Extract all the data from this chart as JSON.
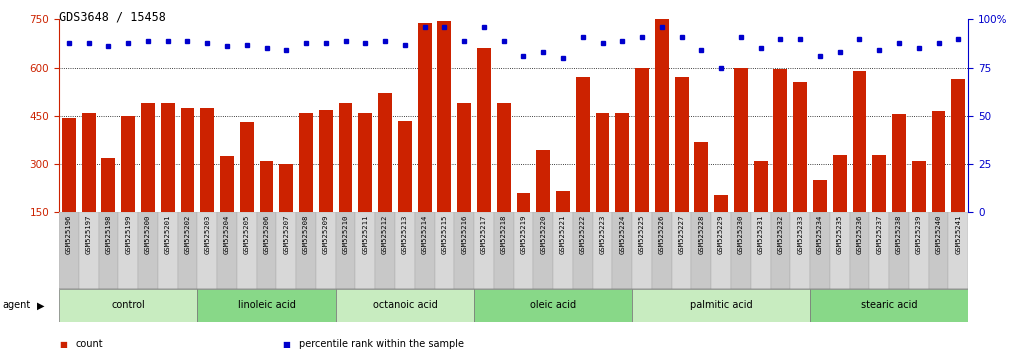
{
  "title": "GDS3648 / 15458",
  "samples": [
    "GSM525196",
    "GSM525197",
    "GSM525198",
    "GSM525199",
    "GSM525200",
    "GSM525201",
    "GSM525202",
    "GSM525203",
    "GSM525204",
    "GSM525205",
    "GSM525206",
    "GSM525207",
    "GSM525208",
    "GSM525209",
    "GSM525210",
    "GSM525211",
    "GSM525212",
    "GSM525213",
    "GSM525214",
    "GSM525215",
    "GSM525216",
    "GSM525217",
    "GSM525218",
    "GSM525219",
    "GSM525220",
    "GSM525221",
    "GSM525222",
    "GSM525223",
    "GSM525224",
    "GSM525225",
    "GSM525226",
    "GSM525227",
    "GSM525228",
    "GSM525229",
    "GSM525230",
    "GSM525231",
    "GSM525232",
    "GSM525233",
    "GSM525234",
    "GSM525235",
    "GSM525236",
    "GSM525237",
    "GSM525238",
    "GSM525239",
    "GSM525240",
    "GSM525241"
  ],
  "counts": [
    445,
    460,
    320,
    450,
    490,
    490,
    475,
    475,
    325,
    430,
    310,
    300,
    460,
    470,
    490,
    460,
    520,
    435,
    740,
    745,
    490,
    660,
    490,
    210,
    345,
    215,
    570,
    460,
    460,
    600,
    760,
    570,
    370,
    205,
    600,
    310,
    595,
    555,
    250,
    330,
    590,
    330,
    455,
    310,
    465,
    565
  ],
  "percentiles": [
    88,
    88,
    86,
    88,
    89,
    89,
    89,
    88,
    86,
    87,
    85,
    84,
    88,
    88,
    89,
    88,
    89,
    87,
    96,
    96,
    89,
    96,
    89,
    81,
    83,
    80,
    91,
    88,
    89,
    91,
    96,
    91,
    84,
    75,
    91,
    85,
    90,
    90,
    81,
    83,
    90,
    84,
    88,
    85,
    88,
    90
  ],
  "groups": [
    {
      "label": "control",
      "start": 0,
      "end": 6,
      "color": "#c8ecc0"
    },
    {
      "label": "linoleic acid",
      "start": 7,
      "end": 13,
      "color": "#90d890"
    },
    {
      "label": "octanoic acid",
      "start": 14,
      "end": 20,
      "color": "#c8ecc0"
    },
    {
      "label": "oleic acid",
      "start": 21,
      "end": 28,
      "color": "#90d890"
    },
    {
      "label": "palmitic acid",
      "start": 29,
      "end": 37,
      "color": "#c8ecc0"
    },
    {
      "label": "stearic acid",
      "start": 38,
      "end": 45,
      "color": "#90d890"
    }
  ],
  "bar_color": "#cc2200",
  "dot_color": "#0000cc",
  "left_ylim": [
    150,
    750
  ],
  "right_ylim": [
    0,
    100
  ],
  "left_yticks": [
    150,
    300,
    450,
    600,
    750
  ],
  "right_yticks": [
    0,
    25,
    50,
    75,
    100
  ],
  "left_yticklabels": [
    "150",
    "300",
    "450",
    "600",
    "750"
  ],
  "right_yticklabels": [
    "0",
    "25",
    "50",
    "75",
    "100%"
  ],
  "grid_values": [
    300,
    450,
    600
  ],
  "background_color": "#ffffff",
  "legend": [
    {
      "color": "#cc2200",
      "label": "count"
    },
    {
      "color": "#0000cc",
      "label": "percentile rank within the sample"
    }
  ]
}
